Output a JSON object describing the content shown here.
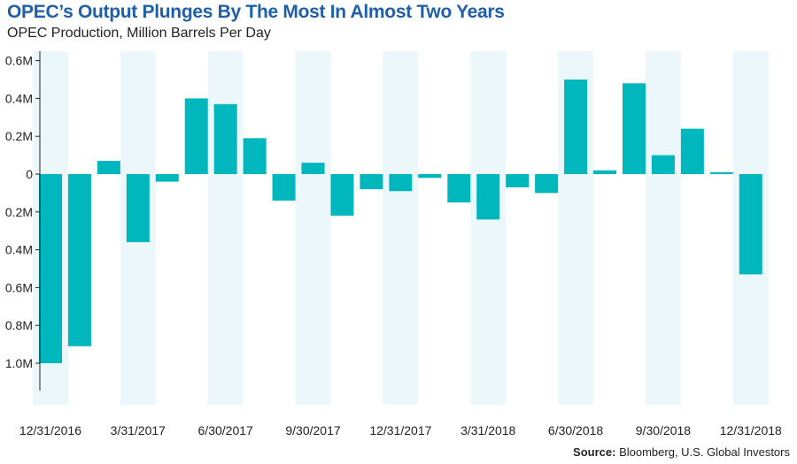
{
  "title": "OPEC’s Output Plunges By The Most In Almost Two Years",
  "subtitle": "OPEC Production, Million Barrels Per Day",
  "source_label": "Source:",
  "source_text": "Bloomberg, U.S. Global Investors",
  "colors": {
    "bar": "#00b7bd",
    "shade": "#ecf7fb",
    "title": "#1f5fa8"
  },
  "chart_data": {
    "type": "bar",
    "title": "OPEC’s Output Plunges By The Most In Almost Two Years",
    "subtitle": "OPEC Production, Million Barrels Per Day",
    "xlabel": "",
    "ylabel": "",
    "ylim": [
      -1.15,
      0.65
    ],
    "y_ticks": [
      {
        "value": 0.6,
        "label": "0.6M"
      },
      {
        "value": 0.4,
        "label": "0.4M"
      },
      {
        "value": 0.2,
        "label": "0.2M"
      },
      {
        "value": 0,
        "label": "0"
      },
      {
        "value": -0.2,
        "label": "0.2M"
      },
      {
        "value": -0.4,
        "label": "0.4M"
      },
      {
        "value": -0.6,
        "label": "0.6M"
      },
      {
        "value": -0.8,
        "label": "0.8M"
      },
      {
        "value": -1.0,
        "label": "1.0M"
      }
    ],
    "x_tick_labels": [
      {
        "index": 0,
        "label": "12/31/2016"
      },
      {
        "index": 3,
        "label": "3/31/2017"
      },
      {
        "index": 6,
        "label": "6/30/2017"
      },
      {
        "index": 9,
        "label": "9/30/2017"
      },
      {
        "index": 12,
        "label": "12/31/2017"
      },
      {
        "index": 15,
        "label": "3/31/2018"
      },
      {
        "index": 18,
        "label": "6/30/2018"
      },
      {
        "index": 21,
        "label": "9/30/2018"
      },
      {
        "index": 24,
        "label": "12/31/2018"
      }
    ],
    "shaded_indices": [
      0,
      3,
      6,
      9,
      12,
      15,
      18,
      21,
      24
    ],
    "values": [
      -1.0,
      -0.91,
      0.07,
      -0.36,
      -0.04,
      0.4,
      0.37,
      0.19,
      -0.14,
      0.06,
      -0.22,
      -0.08,
      -0.09,
      -0.02,
      -0.15,
      -0.24,
      -0.07,
      -0.1,
      0.5,
      0.02,
      0.48,
      0.1,
      0.24,
      0.01,
      -0.53
    ],
    "grid": false,
    "legend": "none"
  }
}
